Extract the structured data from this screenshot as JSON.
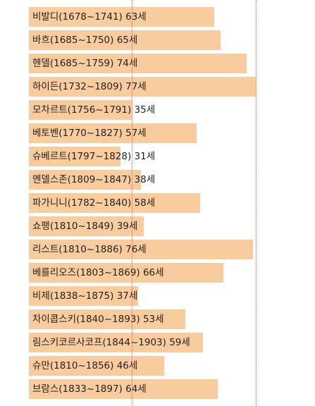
{
  "chart_data": {
    "type": "bar",
    "orientation": "horizontal",
    "bar_color": "#f9cc9d",
    "reference_line_color": "#e8585d",
    "reference_lines": [
      35,
      77
    ],
    "xlim": [
      0,
      77
    ],
    "items": [
      {
        "label": "비발디(1678~1741) 63세",
        "value": 63
      },
      {
        "label": "바흐(1685~1750) 65세",
        "value": 65
      },
      {
        "label": "헨델(1685~1759) 74세",
        "value": 74
      },
      {
        "label": "하이든(1732~1809) 77세",
        "value": 77
      },
      {
        "label": "모차르트(1756~1791) 35세",
        "value": 35
      },
      {
        "label": "베토벤(1770~1827) 57세",
        "value": 57
      },
      {
        "label": "슈베르트(1797~1828) 31세",
        "value": 31
      },
      {
        "label": "멘델스존(1809~1847) 38세",
        "value": 38
      },
      {
        "label": "파가니니(1782~1840) 58세",
        "value": 58
      },
      {
        "label": "쇼팽(1810~1849) 39세",
        "value": 39
      },
      {
        "label": "리스트(1810~1886) 76세",
        "value": 76
      },
      {
        "label": "베를리오즈(1803~1869) 66세",
        "value": 66
      },
      {
        "label": "비제(1838~1875) 37세",
        "value": 37
      },
      {
        "label": "차이콥스키(1840~1893) 53세",
        "value": 53
      },
      {
        "label": "림스키코르사코프(1844~1903) 59세",
        "value": 59
      },
      {
        "label": "슈만(1810~1856) 46세",
        "value": 46
      },
      {
        "label": "브람스(1833~1897) 64세",
        "value": 64
      }
    ]
  }
}
